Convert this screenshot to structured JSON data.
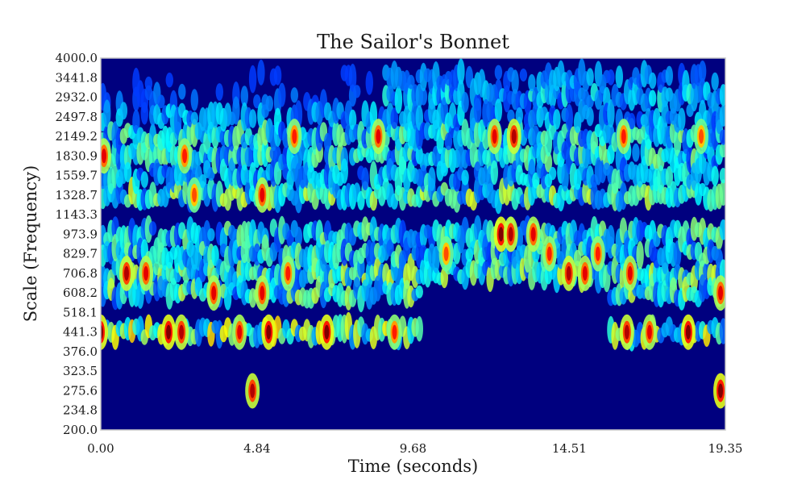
{
  "chart_data": {
    "type": "heatmap",
    "title": "The Sailor's Bonnet",
    "xlabel": "Time (seconds)",
    "ylabel": "Scale (Frequency)",
    "xlim": [
      0.0,
      19.35
    ],
    "ylim": [
      200.0,
      4000.0
    ],
    "x_ticks": [
      "0.00",
      "4.84",
      "9.68",
      "14.51",
      "19.35"
    ],
    "y_ticks": [
      "4000.0",
      "3441.8",
      "2932.0",
      "2497.8",
      "2149.2",
      "1830.9",
      "1559.7",
      "1328.7",
      "1143.3",
      "973.9",
      "829.7",
      "706.8",
      "608.2",
      "518.1",
      "441.3",
      "376.0",
      "323.5",
      "275.6",
      "234.8",
      "200.0"
    ],
    "colormap": "jet",
    "background_color": "#00007f",
    "grid": false,
    "hotspots": [
      {
        "t": 0.0,
        "f": 441.3,
        "v": 1.0
      },
      {
        "t": 0.1,
        "f": 1830.9,
        "v": 0.9
      },
      {
        "t": 0.8,
        "f": 706.8,
        "v": 0.95
      },
      {
        "t": 1.4,
        "f": 706.8,
        "v": 0.9
      },
      {
        "t": 2.1,
        "f": 441.3,
        "v": 1.0
      },
      {
        "t": 2.5,
        "f": 441.3,
        "v": 0.95
      },
      {
        "t": 2.6,
        "f": 1830.9,
        "v": 0.85
      },
      {
        "t": 2.9,
        "f": 1328.7,
        "v": 0.8
      },
      {
        "t": 3.5,
        "f": 608.2,
        "v": 0.9
      },
      {
        "t": 4.3,
        "f": 441.3,
        "v": 0.9
      },
      {
        "t": 4.7,
        "f": 275.6,
        "v": 0.95
      },
      {
        "t": 5.0,
        "f": 608.2,
        "v": 0.9
      },
      {
        "t": 5.2,
        "f": 441.3,
        "v": 1.0
      },
      {
        "t": 5.0,
        "f": 1328.7,
        "v": 0.9
      },
      {
        "t": 5.8,
        "f": 706.8,
        "v": 0.85
      },
      {
        "t": 6.0,
        "f": 2149.2,
        "v": 0.85
      },
      {
        "t": 7.0,
        "f": 441.3,
        "v": 1.0
      },
      {
        "t": 8.6,
        "f": 2149.2,
        "v": 0.9
      },
      {
        "t": 9.1,
        "f": 441.3,
        "v": 0.85
      },
      {
        "t": 10.7,
        "f": 829.7,
        "v": 0.8
      },
      {
        "t": 12.2,
        "f": 2149.2,
        "v": 0.9
      },
      {
        "t": 12.8,
        "f": 2149.2,
        "v": 0.95
      },
      {
        "t": 12.4,
        "f": 973.9,
        "v": 1.0
      },
      {
        "t": 12.7,
        "f": 973.9,
        "v": 0.95
      },
      {
        "t": 13.4,
        "f": 973.9,
        "v": 0.9
      },
      {
        "t": 13.9,
        "f": 829.7,
        "v": 0.85
      },
      {
        "t": 14.5,
        "f": 706.8,
        "v": 0.95
      },
      {
        "t": 15.0,
        "f": 706.8,
        "v": 0.9
      },
      {
        "t": 15.4,
        "f": 829.7,
        "v": 0.85
      },
      {
        "t": 16.2,
        "f": 2149.2,
        "v": 0.85
      },
      {
        "t": 16.4,
        "f": 706.8,
        "v": 0.9
      },
      {
        "t": 16.3,
        "f": 441.3,
        "v": 0.95
      },
      {
        "t": 17.0,
        "f": 441.3,
        "v": 0.9
      },
      {
        "t": 18.2,
        "f": 441.3,
        "v": 1.0
      },
      {
        "t": 18.6,
        "f": 2149.2,
        "v": 0.8
      },
      {
        "t": 19.2,
        "f": 608.2,
        "v": 0.9
      },
      {
        "t": 19.2,
        "f": 275.6,
        "v": 1.0
      }
    ]
  }
}
